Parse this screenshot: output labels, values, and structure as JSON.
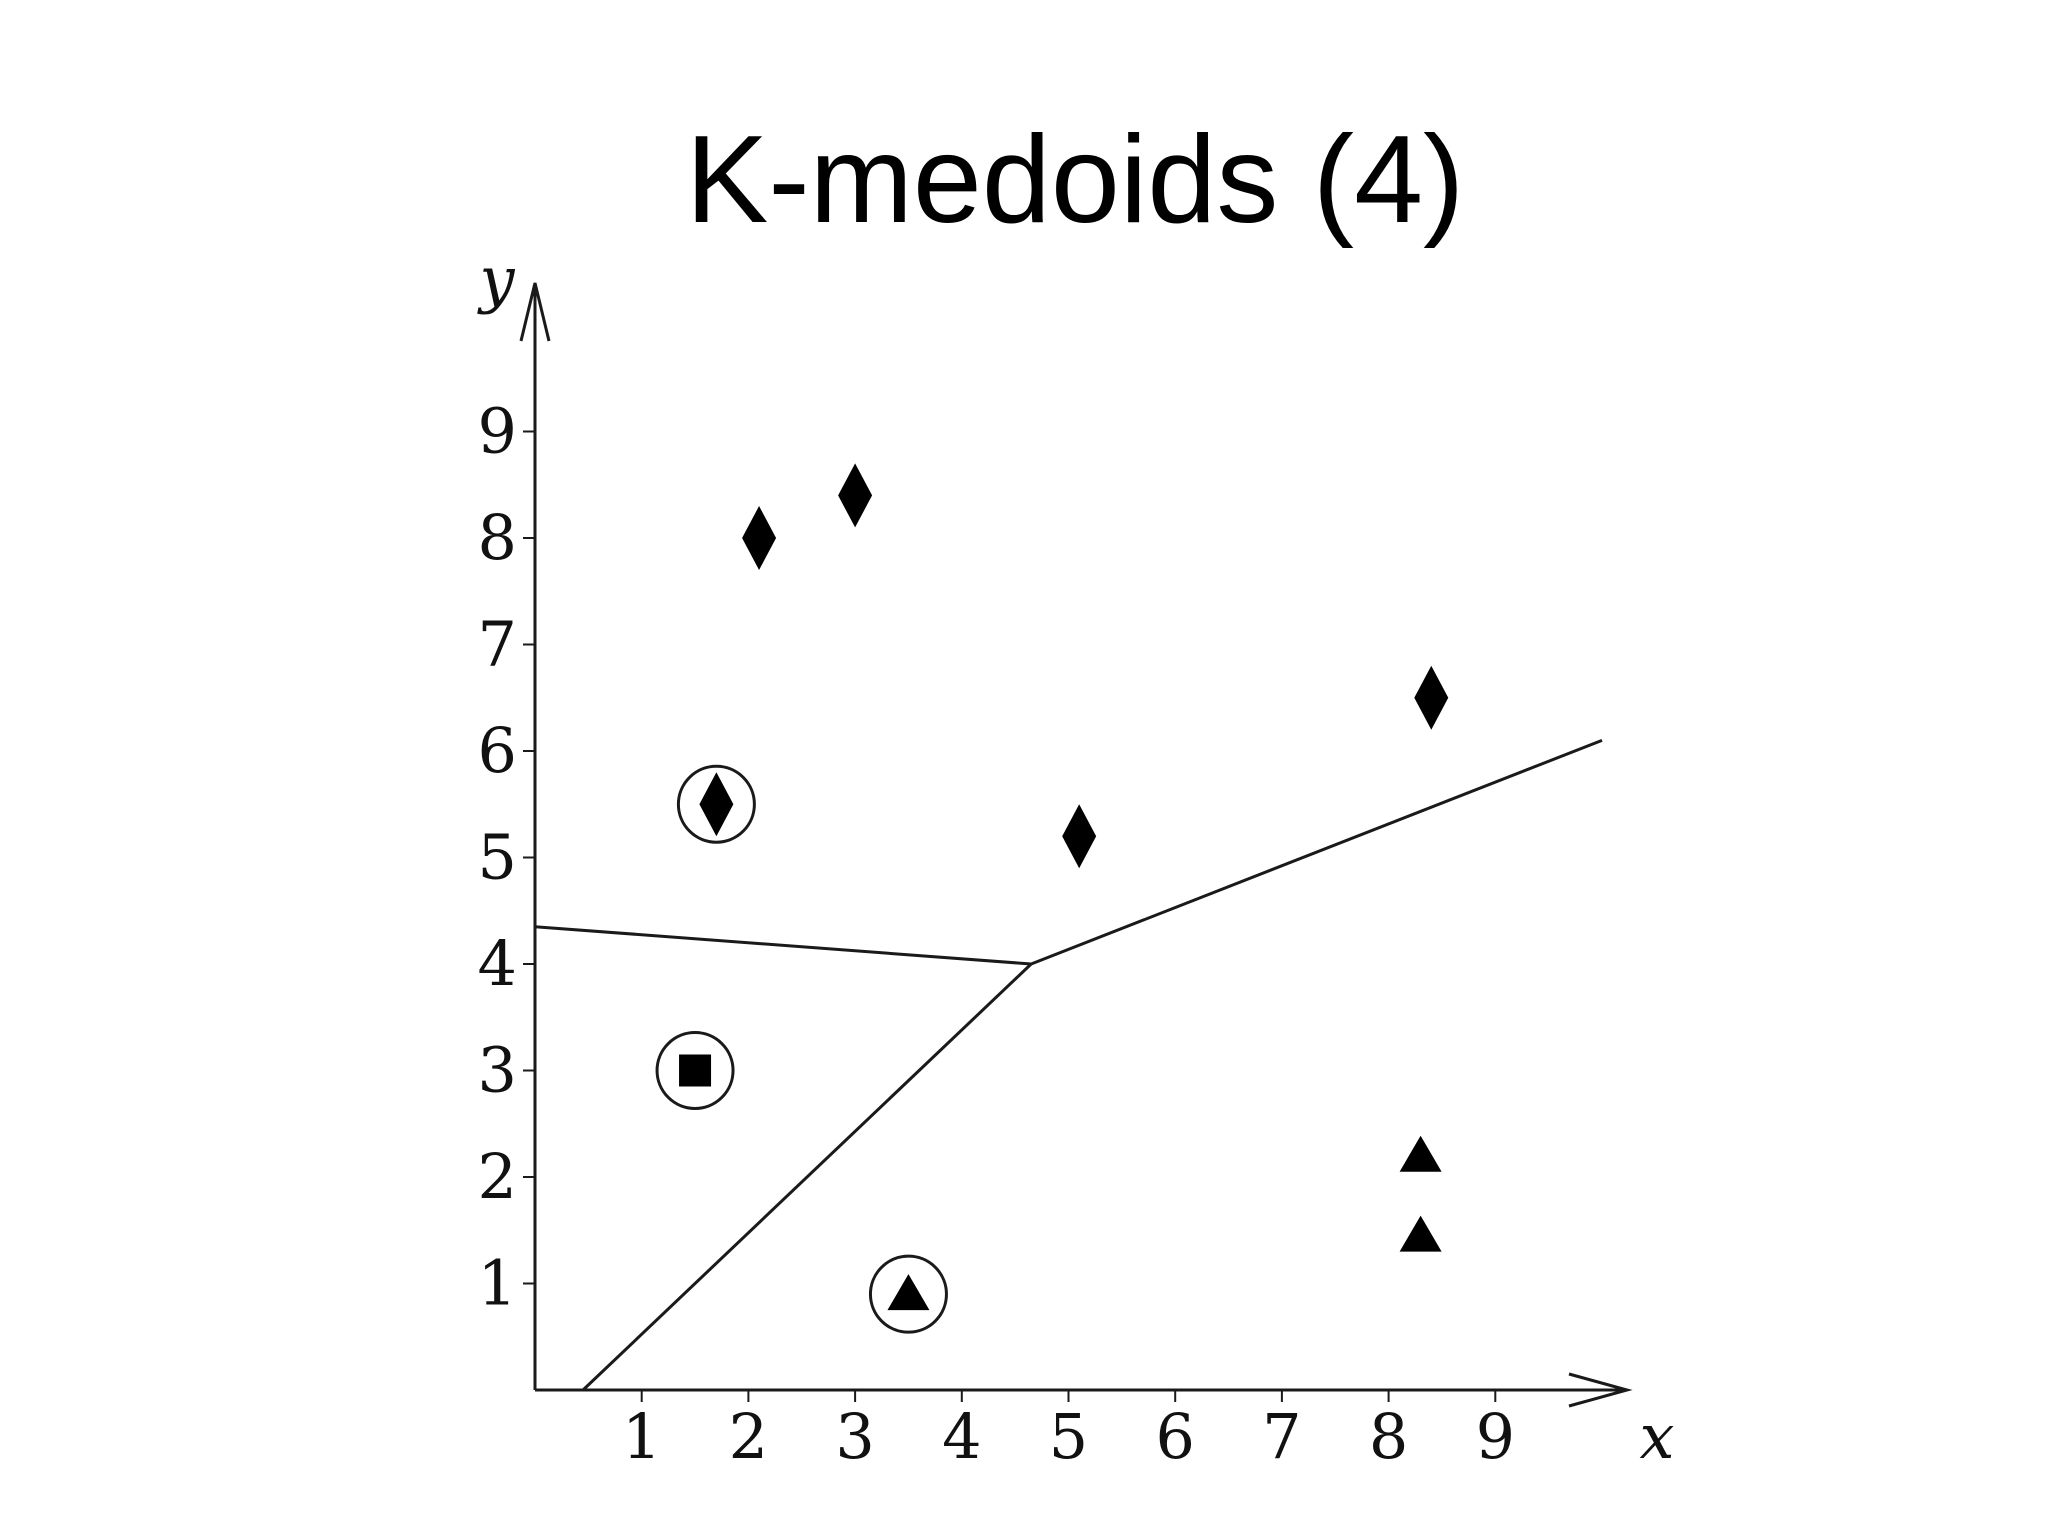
{
  "title": "K-medoids (4)",
  "chart_data": {
    "type": "scatter",
    "title": "K-medoids (4)",
    "xlabel": "x",
    "ylabel": "y",
    "xlim": [
      0,
      10
    ],
    "ylim": [
      0,
      10
    ],
    "x_ticks": [
      "1",
      "2",
      "3",
      "4",
      "5",
      "6",
      "7",
      "8",
      "9"
    ],
    "y_ticks": [
      "1",
      "2",
      "3",
      "4",
      "5",
      "6",
      "7",
      "8",
      "9"
    ],
    "grid": false,
    "series": [
      {
        "marker": "diamond",
        "points": [
          {
            "x": 1.7,
            "y": 5.5,
            "medoid": true
          },
          {
            "x": 2.1,
            "y": 8.0,
            "medoid": false
          },
          {
            "x": 3.0,
            "y": 8.4,
            "medoid": false
          },
          {
            "x": 5.1,
            "y": 5.2,
            "medoid": false
          },
          {
            "x": 8.4,
            "y": 6.5,
            "medoid": false
          }
        ]
      },
      {
        "marker": "square",
        "points": [
          {
            "x": 1.5,
            "y": 3.0,
            "medoid": true
          }
        ]
      },
      {
        "marker": "triangle",
        "points": [
          {
            "x": 3.5,
            "y": 0.9,
            "medoid": true
          },
          {
            "x": 8.3,
            "y": 2.2,
            "medoid": false
          },
          {
            "x": 8.3,
            "y": 1.45,
            "medoid": false
          }
        ]
      }
    ],
    "boundaries": [
      [
        [
          0,
          4.35
        ],
        [
          4.65,
          4.0
        ]
      ],
      [
        [
          4.65,
          4.0
        ],
        [
          10.0,
          6.1
        ]
      ],
      [
        [
          4.65,
          4.0
        ],
        [
          0.45,
          0
        ]
      ]
    ],
    "colors": {
      "marker": "#000000",
      "line": "#1a1a1a",
      "text": "#111111"
    }
  }
}
